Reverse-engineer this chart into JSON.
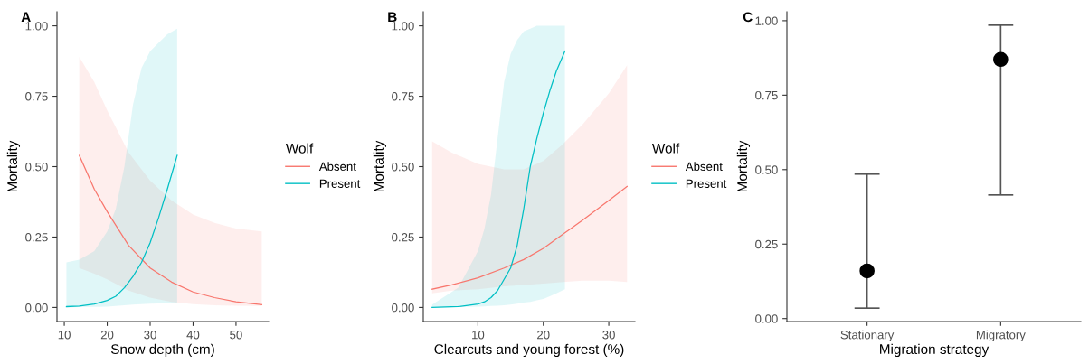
{
  "chart_data": [
    {
      "type": "line",
      "title": "A",
      "xlabel": "Snow depth (cm)",
      "ylabel": "Mortality",
      "legend_title": "Wolf",
      "legend": "right",
      "grid": false,
      "xlim": [
        8.3,
        57.6
      ],
      "xticks": [
        10,
        20,
        30,
        40,
        50
      ],
      "ylim": [
        -0.05,
        1.05
      ],
      "yticks": [
        {
          "value": 0,
          "label": "0.00"
        },
        {
          "value": 0.25,
          "label": "0.25"
        },
        {
          "value": 0.5,
          "label": "0.50"
        },
        {
          "value": 0.75,
          "label": "0.75"
        },
        {
          "value": 1,
          "label": "1.00"
        }
      ],
      "series": [
        {
          "name": "Absent",
          "color": "#f8766d",
          "x": [
            13.5,
            17,
            20,
            25,
            30,
            35,
            40,
            45,
            50,
            56
          ],
          "values": [
            0.54,
            0.42,
            0.34,
            0.22,
            0.14,
            0.09,
            0.055,
            0.035,
            0.02,
            0.01
          ],
          "upper": [
            0.89,
            0.8,
            0.7,
            0.55,
            0.45,
            0.38,
            0.33,
            0.3,
            0.28,
            0.27
          ],
          "lower": [
            0.14,
            0.12,
            0.1,
            0.06,
            0.035,
            0.02,
            0.012,
            0.008,
            0.006,
            0.005
          ]
        },
        {
          "name": "Present",
          "color": "#00bfc4",
          "x": [
            10.5,
            13.5,
            17,
            20,
            22,
            24,
            26,
            28,
            30,
            32,
            34,
            36.3
          ],
          "values": [
            0.003,
            0.005,
            0.012,
            0.025,
            0.04,
            0.07,
            0.11,
            0.16,
            0.23,
            0.32,
            0.42,
            0.54
          ],
          "upper": [
            0.16,
            0.17,
            0.2,
            0.27,
            0.35,
            0.5,
            0.72,
            0.85,
            0.91,
            0.94,
            0.97,
            0.99
          ],
          "lower": [
            0,
            0.001,
            0.002,
            0.003,
            0.005,
            0.008,
            0.01,
            0.012,
            0.013,
            0.014,
            0.015,
            0.015
          ]
        }
      ]
    },
    {
      "type": "line",
      "title": "B",
      "xlabel": "Clearcuts and young forest (%)",
      "ylabel": "Mortality",
      "legend_title": "Wolf",
      "legend": "right",
      "grid": false,
      "xlim": [
        1.65,
        34.0
      ],
      "xticks": [
        10,
        20,
        30
      ],
      "ylim": [
        -0.05,
        1.05
      ],
      "yticks": [
        {
          "value": 0,
          "label": "0.00"
        },
        {
          "value": 0.25,
          "label": "0.25"
        },
        {
          "value": 0.5,
          "label": "0.50"
        },
        {
          "value": 0.75,
          "label": "0.75"
        },
        {
          "value": 1,
          "label": "1.00"
        }
      ],
      "series": [
        {
          "name": "Absent",
          "color": "#f8766d",
          "x": [
            3,
            6,
            10,
            14,
            17,
            20,
            23,
            26,
            30,
            32.8
          ],
          "values": [
            0.065,
            0.08,
            0.105,
            0.14,
            0.17,
            0.21,
            0.26,
            0.31,
            0.38,
            0.43
          ],
          "upper": [
            0.59,
            0.55,
            0.51,
            0.49,
            0.49,
            0.52,
            0.58,
            0.65,
            0.76,
            0.86
          ],
          "lower": [
            0.05,
            0.06,
            0.065,
            0.075,
            0.08,
            0.085,
            0.09,
            0.095,
            0.095,
            0.09
          ]
        },
        {
          "name": "Present",
          "color": "#00bfc4",
          "x": [
            3,
            7,
            10,
            11,
            12,
            13,
            14,
            15,
            16,
            17,
            18,
            19,
            20,
            21,
            22,
            23.3
          ],
          "values": [
            0,
            0.003,
            0.012,
            0.02,
            0.035,
            0.06,
            0.1,
            0.14,
            0.22,
            0.35,
            0.5,
            0.6,
            0.69,
            0.77,
            0.84,
            0.91
          ],
          "upper": [
            0.01,
            0.07,
            0.2,
            0.28,
            0.4,
            0.6,
            0.8,
            0.9,
            0.95,
            0.98,
            0.99,
            1.0,
            1.0,
            1.0,
            1.0,
            1.0
          ],
          "lower": [
            0,
            0.001,
            0.003,
            0.004,
            0.005,
            0.006,
            0.008,
            0.01,
            0.013,
            0.017,
            0.02,
            0.025,
            0.03,
            0.04,
            0.05,
            0.065
          ]
        }
      ]
    },
    {
      "type": "scatter",
      "title": "C",
      "xlabel": "Migration strategy",
      "ylabel": "Mortality",
      "grid": false,
      "marker": "circle",
      "categories": [
        "Stationary",
        "Migratory"
      ],
      "ylim": [
        -0.01,
        1.03
      ],
      "yticks": [
        {
          "value": 0,
          "label": "0.00"
        },
        {
          "value": 0.25,
          "label": "0.25"
        },
        {
          "value": 0.5,
          "label": "0.50"
        },
        {
          "value": 0.75,
          "label": "0.75"
        },
        {
          "value": 1,
          "label": "1.00"
        }
      ],
      "series": [
        {
          "color": "#000000",
          "values": [
            0.16,
            0.87
          ],
          "errors": [
            [
              0.035,
              0.485
            ],
            [
              0.415,
              0.985
            ]
          ]
        }
      ]
    }
  ]
}
